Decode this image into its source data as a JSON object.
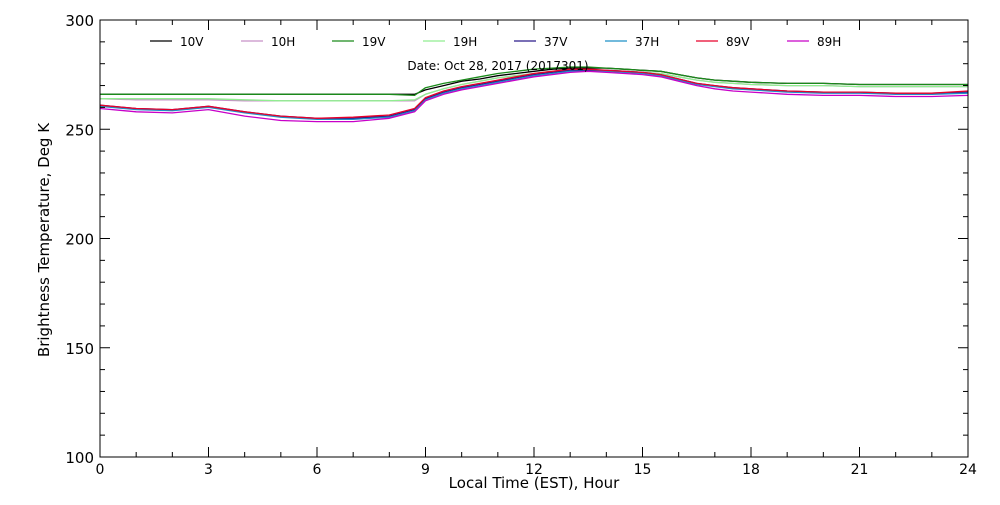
{
  "chart_data": {
    "type": "line",
    "annotation": "Date: Oct 28, 2017 (2017301)",
    "xlabel": "Local Time (EST), Hour",
    "ylabel": "Brightness Temperature, Deg K",
    "xlim": [
      0,
      24
    ],
    "ylim": [
      100,
      300
    ],
    "x_ticks": [
      0,
      3,
      6,
      9,
      12,
      15,
      18,
      21,
      24
    ],
    "y_ticks": [
      100,
      150,
      200,
      250,
      300
    ],
    "grid": false,
    "legend_position": "top",
    "series": [
      {
        "name": "10V",
        "color": "#000000",
        "x": [
          0,
          1,
          2,
          3,
          4,
          5,
          6,
          7,
          8,
          8.7,
          9,
          9.5,
          10,
          10.5,
          11,
          11.5,
          12,
          12.5,
          13,
          13.5,
          14,
          14.5,
          15,
          15.5,
          16,
          16.5,
          17,
          17.5,
          18,
          19,
          20,
          21,
          22,
          23,
          24
        ],
        "y": [
          266,
          266,
          266,
          266,
          266,
          266,
          266,
          266,
          266,
          266,
          268,
          270,
          272,
          273,
          274.5,
          275.5,
          276.5,
          277.5,
          278,
          278,
          278,
          277.5,
          277,
          276.5,
          275,
          273.5,
          272.5,
          272,
          271.5,
          271,
          271,
          270.5,
          270.5,
          270.5,
          270.5
        ]
      },
      {
        "name": "10H",
        "color": "#c890c8",
        "x": [
          0,
          1,
          2,
          3,
          4,
          5,
          6,
          7,
          8,
          8.7,
          9,
          9.5,
          10,
          10.5,
          11,
          11.5,
          12,
          12.5,
          13,
          13.5,
          14,
          14.5,
          15,
          15.5,
          16,
          16.5,
          17,
          17.5,
          18,
          19,
          20,
          21,
          22,
          23,
          24
        ],
        "y": [
          264,
          263.5,
          263.5,
          263.5,
          263,
          263,
          263,
          263,
          263,
          263,
          266,
          268.5,
          270.5,
          272,
          273.5,
          274.5,
          275.5,
          276.5,
          277,
          277,
          277,
          276.5,
          276,
          275.5,
          274,
          272.5,
          271.5,
          271,
          270.5,
          270,
          270,
          269.5,
          269.5,
          269.5,
          269.5
        ]
      },
      {
        "name": "19V",
        "color": "#1a8a1a",
        "x": [
          0,
          1,
          2,
          3,
          4,
          5,
          6,
          7,
          8,
          8.7,
          9,
          9.5,
          10,
          10.5,
          11,
          11.5,
          12,
          12.5,
          13,
          13.5,
          14,
          14.5,
          15,
          15.5,
          16,
          16.5,
          17,
          17.5,
          18,
          19,
          20,
          21,
          22,
          23,
          24
        ],
        "y": [
          266,
          266,
          266,
          266,
          266,
          266,
          266,
          266,
          266,
          265.5,
          269,
          271,
          272.5,
          274,
          275.5,
          276.5,
          277.5,
          278,
          278.5,
          278.5,
          278,
          277.5,
          277,
          276.5,
          275,
          273.5,
          272.5,
          272,
          271.5,
          271,
          271,
          270.5,
          270.5,
          270.5,
          270.5
        ]
      },
      {
        "name": "19H",
        "color": "#90ee90",
        "x": [
          0,
          1,
          2,
          3,
          4,
          5,
          6,
          7,
          8,
          8.7,
          9,
          9.5,
          10,
          10.5,
          11,
          11.5,
          12,
          12.5,
          13,
          13.5,
          14,
          14.5,
          15,
          15.5,
          16,
          16.5,
          17,
          17.5,
          18,
          19,
          20,
          21,
          22,
          23,
          24
        ],
        "y": [
          264,
          264,
          264,
          264,
          263.5,
          263,
          263,
          263,
          263,
          263.5,
          266,
          268.5,
          270.5,
          272,
          273.5,
          274.5,
          275.5,
          276.5,
          277,
          277,
          277,
          276.5,
          276,
          275.5,
          274,
          272.5,
          271.5,
          271,
          270.5,
          270,
          270,
          269.5,
          269.5,
          269.5,
          269.5
        ]
      },
      {
        "name": "37V",
        "color": "#2b1a8a",
        "x": [
          0,
          1,
          2,
          3,
          4,
          5,
          6,
          7,
          8,
          8.7,
          9,
          9.5,
          10,
          10.5,
          11,
          11.5,
          12,
          12.5,
          13,
          13.5,
          14,
          14.5,
          15,
          15.5,
          16,
          16.5,
          17,
          17.5,
          18,
          19,
          20,
          21,
          22,
          23,
          24
        ],
        "y": [
          261,
          259.5,
          259,
          260.5,
          258,
          256,
          255,
          255,
          256,
          259,
          264,
          267,
          269,
          270.5,
          272,
          273.5,
          275,
          276,
          277,
          277,
          277,
          276.5,
          276,
          275,
          273,
          271,
          270,
          269,
          268.5,
          267.5,
          267,
          267,
          266.5,
          266.5,
          267
        ]
      },
      {
        "name": "37H",
        "color": "#1e90c8",
        "x": [
          0,
          1,
          2,
          3,
          4,
          5,
          6,
          7,
          8,
          8.7,
          9,
          9.5,
          10,
          10.5,
          11,
          11.5,
          12,
          12.5,
          13,
          13.5,
          14,
          14.5,
          15,
          15.5,
          16,
          16.5,
          17,
          17.5,
          18,
          19,
          20,
          21,
          22,
          23,
          24
        ],
        "y": [
          260.5,
          259,
          258.5,
          260,
          257.5,
          255.5,
          254.5,
          254.5,
          255.5,
          258.5,
          263.5,
          266.5,
          268.5,
          270,
          271.5,
          273,
          274.5,
          275.5,
          276.5,
          276.5,
          276.5,
          276,
          275.5,
          274.5,
          272.5,
          270.5,
          269.5,
          268.5,
          268,
          267,
          266.5,
          266.5,
          266,
          266,
          266.5
        ]
      },
      {
        "name": "89V",
        "color": "#e8002a",
        "x": [
          0,
          1,
          2,
          3,
          4,
          5,
          6,
          7,
          8,
          8.7,
          9,
          9.5,
          10,
          10.5,
          11,
          11.5,
          12,
          12.5,
          13,
          13.5,
          14,
          14.5,
          15,
          15.5,
          16,
          16.5,
          17,
          17.5,
          18,
          19,
          20,
          21,
          22,
          23,
          24
        ],
        "y": [
          261,
          259.5,
          259,
          260.5,
          258,
          256,
          255,
          255.5,
          256.5,
          259.5,
          264.5,
          267.5,
          269.5,
          271,
          272.5,
          274,
          275.5,
          276.5,
          277.5,
          277.5,
          277,
          276.5,
          276,
          275,
          273,
          271,
          270,
          269,
          268.5,
          267.5,
          267,
          267,
          266.5,
          266.5,
          267.5
        ]
      },
      {
        "name": "89H",
        "color": "#c800c8",
        "x": [
          0,
          1,
          2,
          3,
          4,
          5,
          6,
          7,
          8,
          8.7,
          9,
          9.5,
          10,
          10.5,
          11,
          11.5,
          12,
          12.5,
          13,
          13.5,
          14,
          14.5,
          15,
          15.5,
          16,
          16.5,
          17,
          17.5,
          18,
          19,
          20,
          21,
          22,
          23,
          24
        ],
        "y": [
          259.5,
          258,
          257.5,
          259,
          256,
          254,
          253.5,
          253.5,
          255,
          258,
          263,
          266,
          268,
          269.5,
          271,
          272.5,
          274,
          275,
          276,
          276.5,
          276,
          275.5,
          275,
          274,
          272,
          270,
          268.5,
          267.5,
          267,
          266,
          265.5,
          265.5,
          265,
          265,
          265.5
        ]
      }
    ]
  }
}
